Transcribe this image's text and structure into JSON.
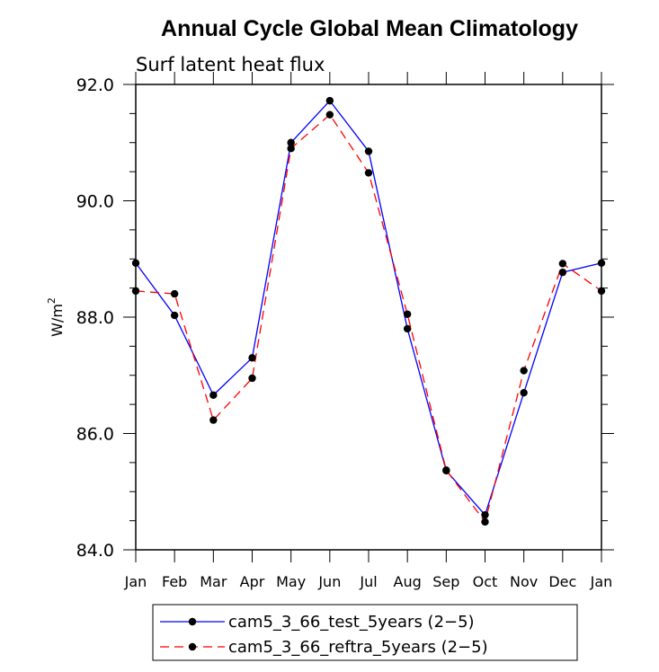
{
  "chart_data": {
    "type": "line",
    "title": "Annual Cycle Global Mean Climatology",
    "subtitle": "Surf latent heat flux",
    "ylabel_base": "W/m",
    "ylabel_sup": "2",
    "xlabel": "",
    "ylim": [
      84.0,
      92.0
    ],
    "yticks": [
      "84.0",
      "86.0",
      "88.0",
      "90.0",
      "92.0"
    ],
    "categories": [
      "Jan",
      "Feb",
      "Mar",
      "Apr",
      "May",
      "Jun",
      "Jul",
      "Aug",
      "Sep",
      "Oct",
      "Nov",
      "Dec",
      "Jan"
    ],
    "series": [
      {
        "name": "cam5_3_66_test_5years (2−5)",
        "color": "#0000ff",
        "dash": "solid",
        "values": [
          88.93,
          88.03,
          86.66,
          87.3,
          91.0,
          91.72,
          90.85,
          87.8,
          85.36,
          84.6,
          86.7,
          88.77,
          88.93
        ]
      },
      {
        "name": "cam5_3_66_reftra_5years (2−5)",
        "color": "#ff0000",
        "dash": "dashed",
        "values": [
          88.45,
          88.4,
          86.23,
          86.95,
          90.9,
          91.48,
          90.48,
          88.05,
          85.37,
          84.48,
          87.08,
          88.92,
          88.45
        ]
      }
    ],
    "marker_color": "#000000",
    "legend_position": "bottom"
  }
}
